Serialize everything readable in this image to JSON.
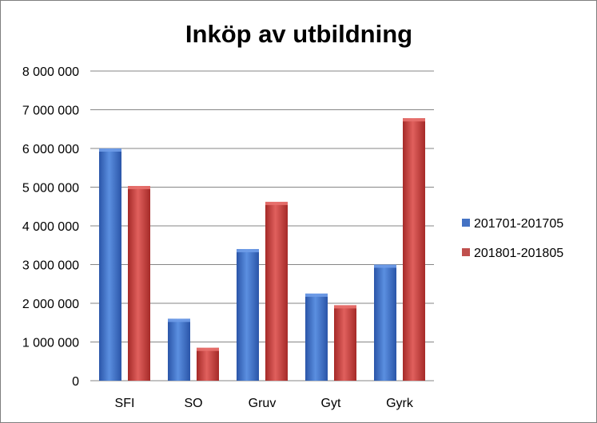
{
  "chart_data": {
    "type": "bar",
    "title": "Inköp av utbildning",
    "categories": [
      "SFI",
      "SO",
      "Gruv",
      "Gyt",
      "Gyrk"
    ],
    "series": [
      {
        "name": "201701-201705",
        "values": [
          6000000,
          1600000,
          3400000,
          2250000,
          3000000
        ]
      },
      {
        "name": "201801-201805",
        "values": [
          5030000,
          850000,
          4620000,
          1950000,
          6780000
        ]
      }
    ],
    "ylim": [
      0,
      8000000
    ],
    "yticks": [
      0,
      1000000,
      2000000,
      3000000,
      4000000,
      5000000,
      6000000,
      7000000,
      8000000
    ],
    "ytick_labels": [
      "0",
      "1 000 000",
      "2 000 000",
      "3 000 000",
      "4 000 000",
      "5 000 000",
      "6 000 000",
      "7 000 000",
      "8 000 000"
    ],
    "grid": true,
    "legend_position": "right",
    "colors": {
      "series_1": "#4472c4",
      "series_2": "#c0504d"
    }
  }
}
